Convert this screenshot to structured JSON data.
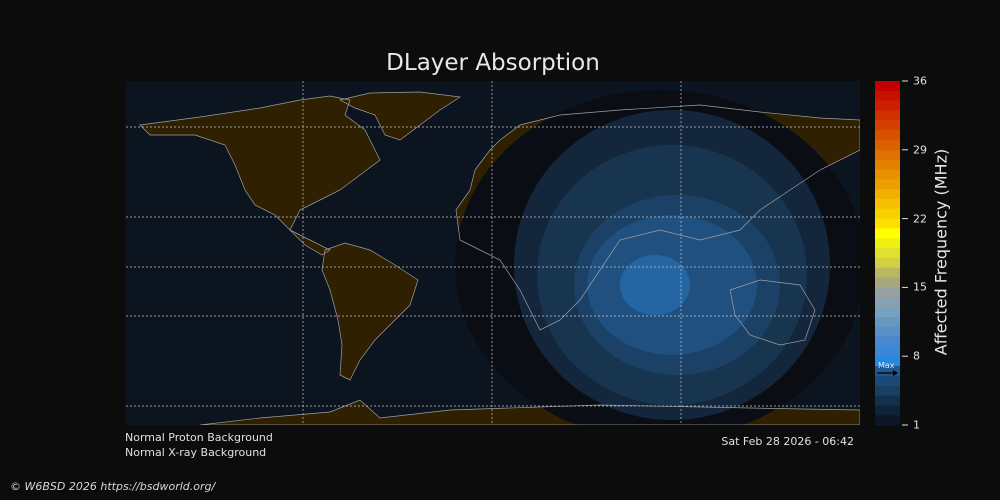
{
  "title": "DLayer Absorption",
  "status": [
    "Normal Proton Background",
    "Normal X-ray Background"
  ],
  "timestamp": "Sat Feb 28 2026 - 06:42",
  "copyright": "© W6BSD 2026 https://bsdworld.org/",
  "colorbar": {
    "label": "Affected Frequency (MHz)",
    "range": [
      1,
      36
    ],
    "ticks": [
      "1",
      "8",
      "15",
      "22",
      "29",
      "36"
    ],
    "max_marker_label": "Max",
    "max_marker_value": 6.2,
    "colors_top_to_bottom": [
      "#c00000",
      "#c81000",
      "#cc2000",
      "#d03000",
      "#d44000",
      "#d85000",
      "#dc6000",
      "#e07000",
      "#e48000",
      "#e89000",
      "#eca000",
      "#f0b000",
      "#f4c000",
      "#f8d000",
      "#fce000",
      "#ffff00",
      "#f0f010",
      "#e0e030",
      "#d0d040",
      "#b8b860",
      "#a8a880",
      "#98a0a0",
      "#88a0b0",
      "#78a0c0",
      "#6898c0",
      "#5890c8",
      "#4888d0",
      "#3888d8",
      "#2888e0",
      "#205890",
      "#1c4a78",
      "#184060",
      "#14304c",
      "#102438",
      "#0c1828"
    ]
  },
  "map": {
    "ocean_color": "#0c1420",
    "land_color": "#2e2000",
    "coastline_color": "#a0a0a0",
    "absorption_levels": [
      "#0a0e14",
      "#13263b",
      "#183550",
      "#1b4266",
      "#1f5080",
      "#2466a3"
    ]
  }
}
